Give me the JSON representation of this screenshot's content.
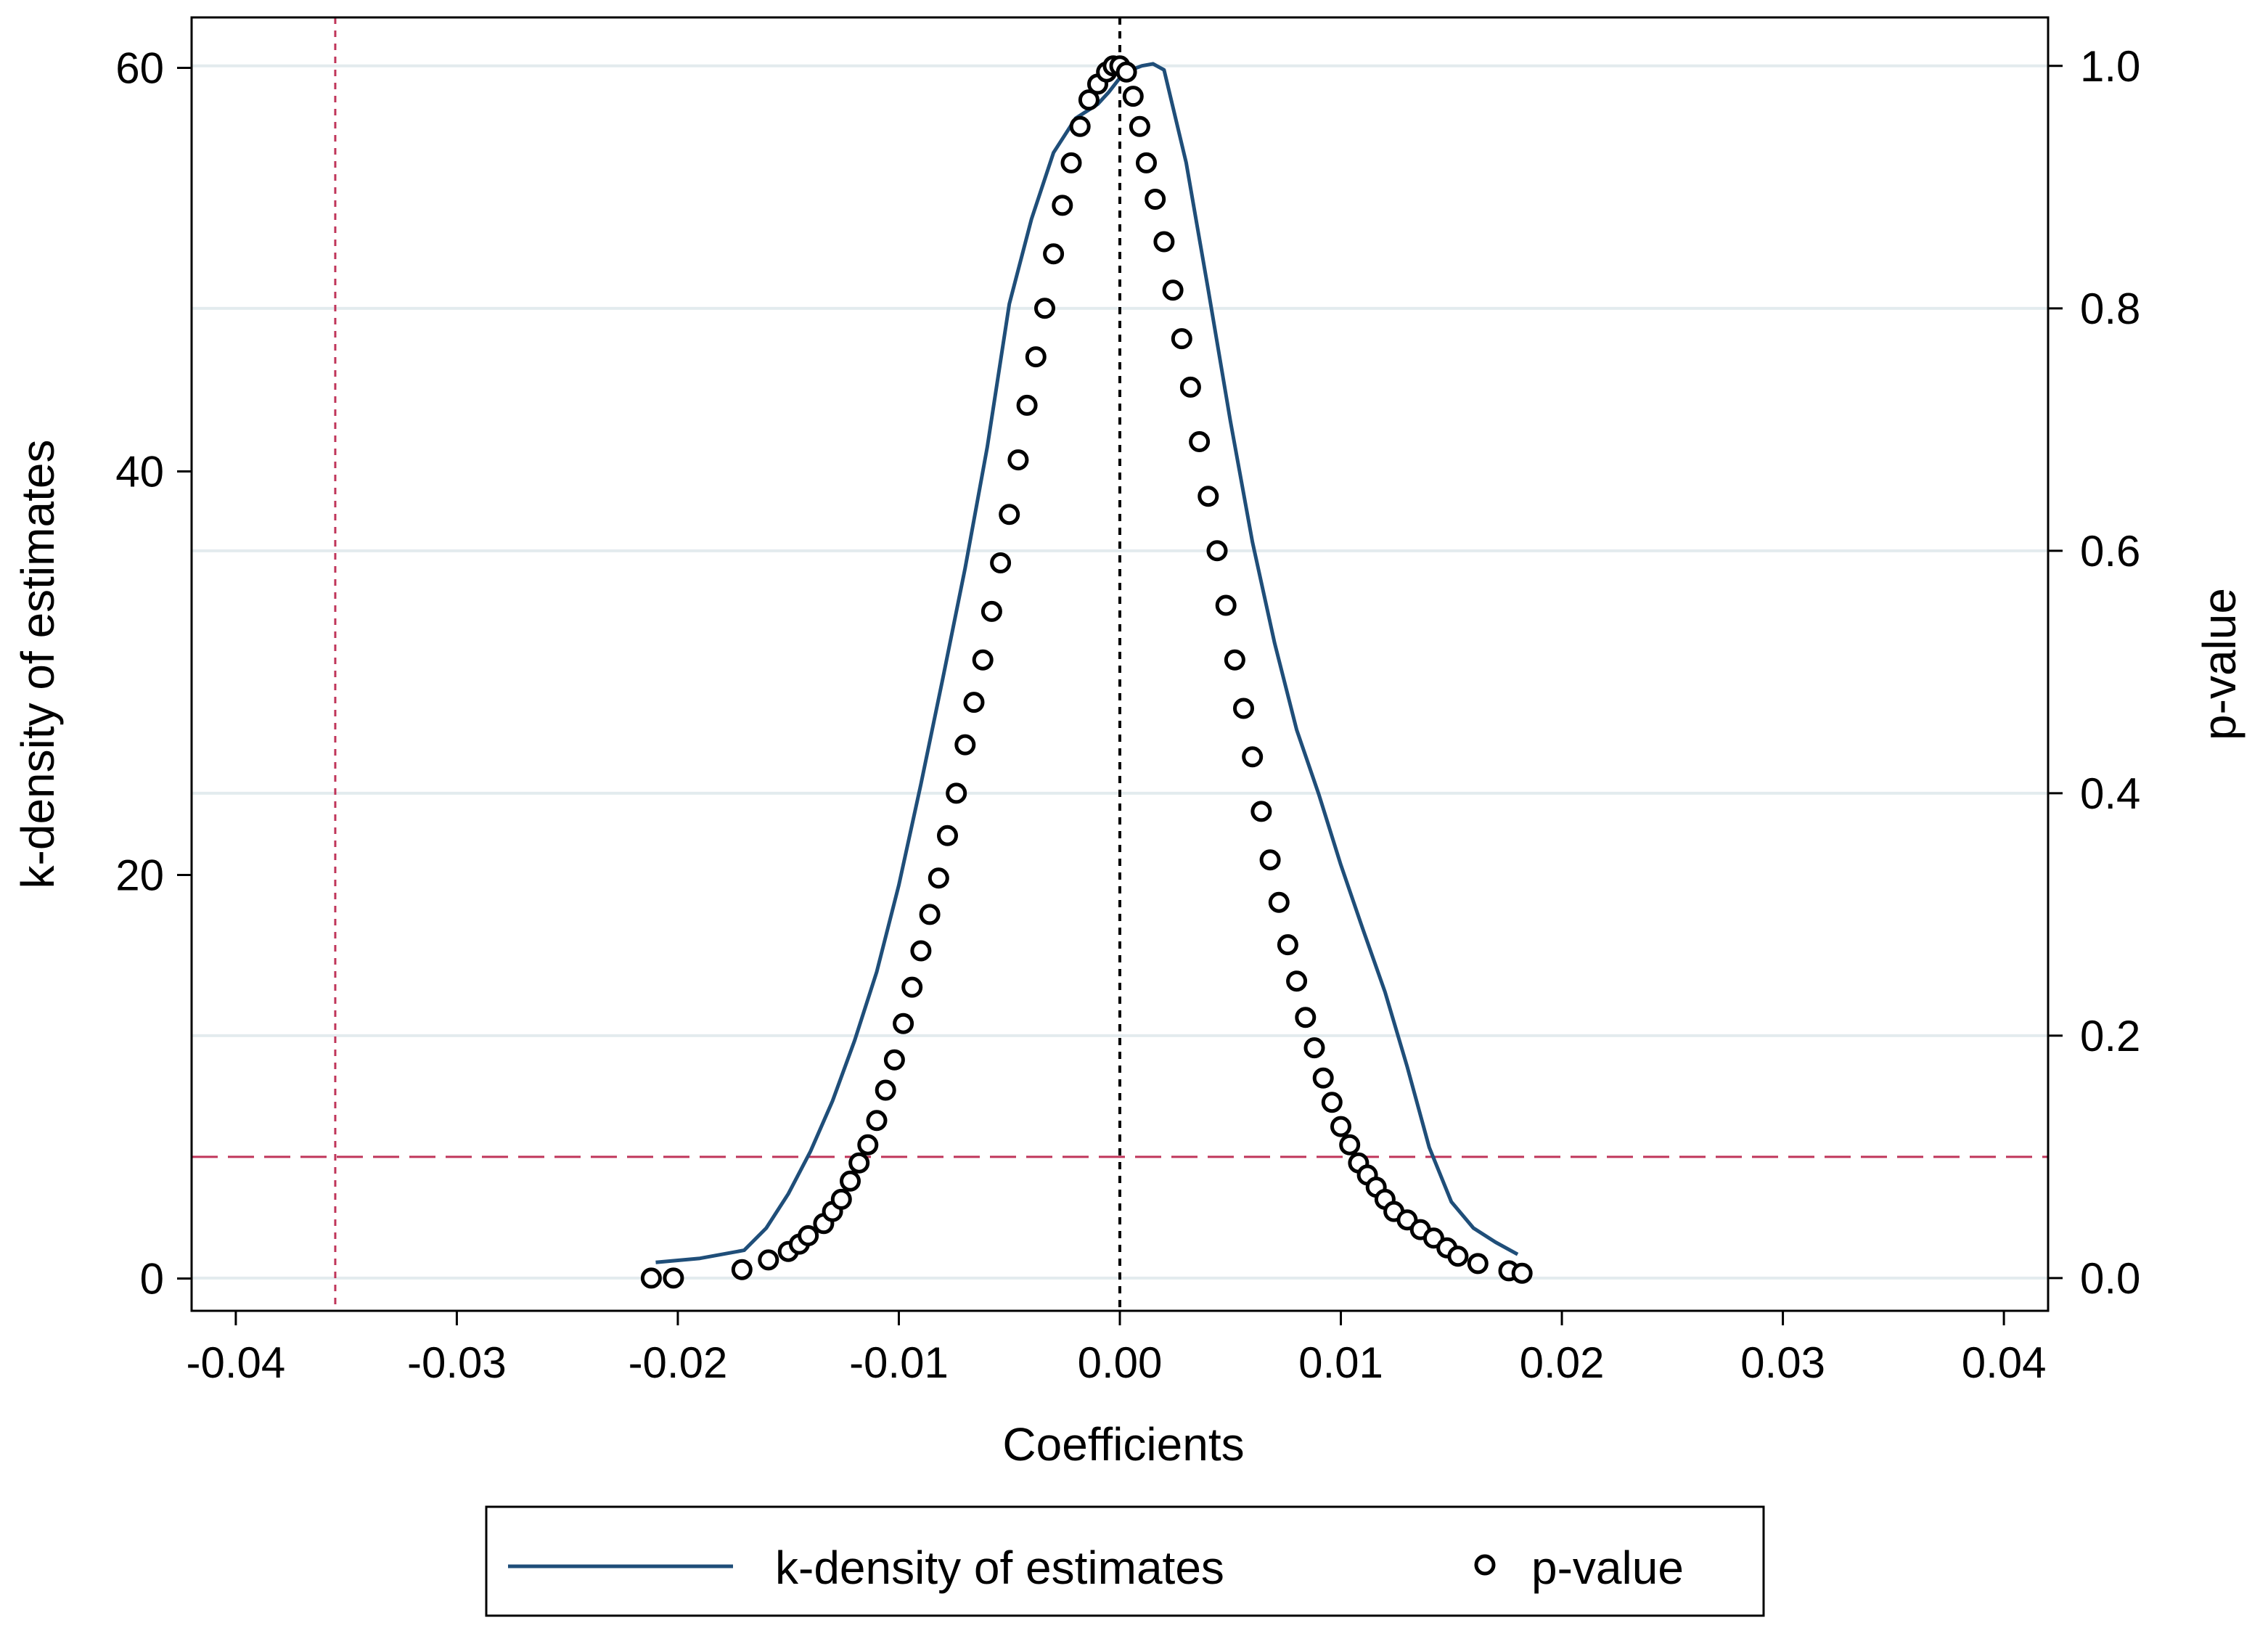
{
  "chart_data": {
    "type": "line+scatter",
    "xlabel": "Coefficients",
    "ylabel_left": "k-density of estimates",
    "ylabel_right": "p-value",
    "xlim": [
      -0.042,
      0.042
    ],
    "ylim_left": [
      -1.6,
      62.5
    ],
    "ylim_right": [
      -0.027,
      1.04
    ],
    "x_ticks": [
      -0.04,
      -0.03,
      -0.02,
      -0.01,
      0.0,
      0.01,
      0.02,
      0.03,
      0.04
    ],
    "x_tick_labels": [
      "-0.04",
      "-0.03",
      "-0.02",
      "-0.01",
      "0.00",
      "0.01",
      "0.02",
      "0.03",
      "0.04"
    ],
    "y_left_ticks": [
      0,
      20,
      40,
      60
    ],
    "y_left_tick_labels": [
      "0",
      "20",
      "40",
      "60"
    ],
    "y_right_ticks": [
      0.0,
      0.2,
      0.4,
      0.6,
      0.8,
      1.0
    ],
    "y_right_tick_labels": [
      "0.0",
      "0.2",
      "0.4",
      "0.6",
      "0.8",
      "1.0"
    ],
    "grid": true,
    "legend_position": "bottom",
    "reference_lines": {
      "vertical_zero_x": 0.0,
      "vertical_red_x": -0.0355,
      "horizontal_red_pvalue": 0.1
    },
    "colors": {
      "density_line": "#1f4e79",
      "points": "#000000",
      "reference_red": "#c0355a",
      "grid": "#e3ebee"
    },
    "series": [
      {
        "name": "k-density of estimates",
        "kind": "line",
        "axis": "left",
        "x": [
          -0.021,
          -0.019,
          -0.017,
          -0.016,
          -0.015,
          -0.014,
          -0.013,
          -0.012,
          -0.011,
          -0.01,
          -0.009,
          -0.008,
          -0.007,
          -0.006,
          -0.005,
          -0.004,
          -0.003,
          -0.002,
          -0.001,
          -0.0005,
          0.0,
          0.0005,
          0.001,
          0.0015,
          0.002,
          0.003,
          0.004,
          0.005,
          0.006,
          0.007,
          0.008,
          0.009,
          0.01,
          0.011,
          0.012,
          0.013,
          0.014,
          0.015,
          0.016,
          0.017,
          0.018
        ],
        "y": [
          0.8,
          1.0,
          1.4,
          2.5,
          4.2,
          6.3,
          8.8,
          11.8,
          15.2,
          19.5,
          24.5,
          29.8,
          35.2,
          41.2,
          48.3,
          52.5,
          55.8,
          57.5,
          58.2,
          58.8,
          59.5,
          59.9,
          60.1,
          60.2,
          59.9,
          55.3,
          49.0,
          42.5,
          36.5,
          31.5,
          27.2,
          24.0,
          20.5,
          17.3,
          14.2,
          10.5,
          6.5,
          3.8,
          2.5,
          1.8,
          1.2
        ]
      },
      {
        "name": "p-value",
        "kind": "scatter",
        "axis": "right",
        "x": [
          -0.0212,
          -0.0202,
          -0.0171,
          -0.0159,
          -0.015,
          -0.0145,
          -0.0141,
          -0.0134,
          -0.013,
          -0.0126,
          -0.0122,
          -0.0118,
          -0.0114,
          -0.011,
          -0.0106,
          -0.0102,
          -0.0098,
          -0.0094,
          -0.009,
          -0.0086,
          -0.0082,
          -0.0078,
          -0.0074,
          -0.007,
          -0.0066,
          -0.0062,
          -0.0058,
          -0.0054,
          -0.005,
          -0.0046,
          -0.0042,
          -0.0038,
          -0.0034,
          -0.003,
          -0.0026,
          -0.0022,
          -0.0018,
          -0.0014,
          -0.001,
          -0.0006,
          -0.0003,
          0.0,
          0.0003,
          0.0006,
          0.0009,
          0.0012,
          0.0016,
          0.002,
          0.0024,
          0.0028,
          0.0032,
          0.0036,
          0.004,
          0.0044,
          0.0048,
          0.0052,
          0.0056,
          0.006,
          0.0064,
          0.0068,
          0.0072,
          0.0076,
          0.008,
          0.0084,
          0.0088,
          0.0092,
          0.0096,
          0.01,
          0.0104,
          0.0108,
          0.0112,
          0.0116,
          0.012,
          0.0124,
          0.013,
          0.0136,
          0.0142,
          0.0148,
          0.0153,
          0.0162,
          0.0176,
          0.0182
        ],
        "y": [
          0.0,
          0.0,
          0.007,
          0.015,
          0.022,
          0.028,
          0.035,
          0.045,
          0.055,
          0.065,
          0.08,
          0.095,
          0.11,
          0.13,
          0.155,
          0.18,
          0.21,
          0.24,
          0.27,
          0.3,
          0.33,
          0.365,
          0.4,
          0.44,
          0.475,
          0.51,
          0.55,
          0.59,
          0.63,
          0.675,
          0.72,
          0.76,
          0.8,
          0.845,
          0.885,
          0.92,
          0.95,
          0.972,
          0.985,
          0.995,
          1.0,
          1.0,
          0.995,
          0.975,
          0.95,
          0.92,
          0.89,
          0.855,
          0.815,
          0.775,
          0.735,
          0.69,
          0.645,
          0.6,
          0.555,
          0.51,
          0.47,
          0.43,
          0.385,
          0.345,
          0.31,
          0.275,
          0.245,
          0.215,
          0.19,
          0.165,
          0.145,
          0.125,
          0.11,
          0.095,
          0.085,
          0.075,
          0.065,
          0.055,
          0.048,
          0.04,
          0.033,
          0.025,
          0.018,
          0.012,
          0.006,
          0.004
        ]
      }
    ]
  }
}
